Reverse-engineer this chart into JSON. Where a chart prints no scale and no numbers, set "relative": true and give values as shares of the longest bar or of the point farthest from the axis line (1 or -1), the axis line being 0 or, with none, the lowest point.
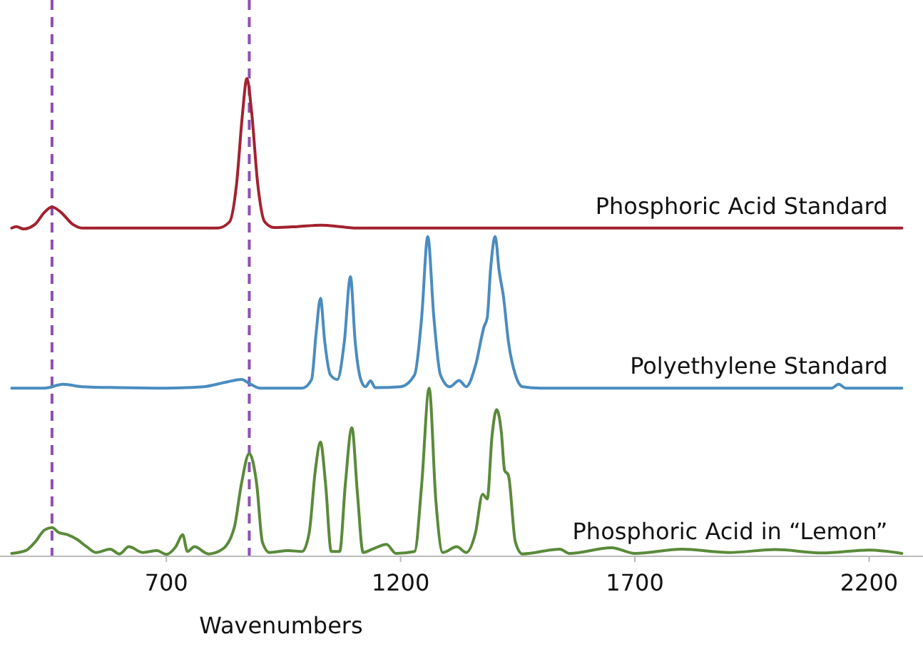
{
  "chart_data": {
    "type": "line",
    "relative": true,
    "xlabel": "Wavenumbers",
    "xlim": [
      345,
      2315
    ],
    "xticks": [
      700,
      1200,
      1700,
      2200
    ],
    "ref_lines": [
      {
        "axis": "x",
        "value": 456,
        "color": "#8e4fb3",
        "line_style": "dashed"
      },
      {
        "axis": "x",
        "value": 877,
        "color": "#8e4fb3",
        "line_style": "dashed"
      }
    ],
    "series": [
      {
        "name": "Phosphoric Acid Standard",
        "color": "#a3222f",
        "x": [
          370,
          380,
          395,
          420,
          440,
          456,
          475,
          500,
          520,
          700,
          810,
          835,
          850,
          862,
          872,
          882,
          895,
          910,
          930,
          980,
          1030,
          1070,
          1100,
          1500,
          2270
        ],
        "values": [
          0.687,
          0.69,
          0.685,
          0.695,
          0.72,
          0.731,
          0.72,
          0.695,
          0.687,
          0.687,
          0.687,
          0.7,
          0.78,
          0.92,
          1.0,
          0.93,
          0.78,
          0.7,
          0.688,
          0.69,
          0.693,
          0.69,
          0.687,
          0.687,
          0.687
        ]
      },
      {
        "name": "Polyethylene Standard",
        "color": "#4a8cc0",
        "x": [
          370,
          440,
          480,
          520,
          600,
          700,
          780,
          830,
          860,
          880,
          900,
          990,
          1010,
          1020,
          1029,
          1038,
          1050,
          1065,
          1080,
          1093,
          1103,
          1115,
          1125,
          1136,
          1146,
          1200,
          1230,
          1245,
          1258,
          1271,
          1285,
          1305,
          1325,
          1340,
          1360,
          1378,
          1385,
          1392,
          1402,
          1410,
          1420,
          1430,
          1445,
          1460,
          1500,
          2120,
          2135,
          2150,
          2270
        ],
        "values": [
          0.352,
          0.352,
          0.36,
          0.355,
          0.353,
          0.352,
          0.355,
          0.365,
          0.37,
          0.36,
          0.352,
          0.352,
          0.37,
          0.47,
          0.54,
          0.45,
          0.38,
          0.37,
          0.45,
          0.585,
          0.45,
          0.37,
          0.355,
          0.367,
          0.353,
          0.355,
          0.38,
          0.5,
          0.669,
          0.5,
          0.38,
          0.355,
          0.368,
          0.355,
          0.4,
          0.48,
          0.5,
          0.6,
          0.669,
          0.6,
          0.54,
          0.45,
          0.38,
          0.355,
          0.352,
          0.352,
          0.36,
          0.352,
          0.352
        ]
      },
      {
        "name": "Phosphoric Acid in “Lemon”",
        "color": "#5a8a3a",
        "x": [
          370,
          400,
          420,
          440,
          456,
          470,
          490,
          510,
          530,
          550,
          580,
          600,
          620,
          650,
          680,
          700,
          720,
          735,
          745,
          760,
          790,
          820,
          845,
          860,
          877,
          893,
          905,
          920,
          960,
          990,
          1005,
          1018,
          1029,
          1040,
          1052,
          1070,
          1082,
          1096,
          1108,
          1120,
          1140,
          1170,
          1190,
          1230,
          1245,
          1261,
          1275,
          1290,
          1320,
          1340,
          1360,
          1375,
          1385,
          1395,
          1405,
          1415,
          1422,
          1430,
          1445,
          1460,
          1540,
          1560,
          1650,
          1700,
          1800,
          1900,
          2000,
          2100,
          2200,
          2270
        ],
        "values": [
          0.006,
          0.012,
          0.03,
          0.055,
          0.06,
          0.05,
          0.045,
          0.035,
          0.02,
          0.008,
          0.015,
          0.005,
          0.02,
          0.008,
          0.012,
          0.004,
          0.02,
          0.045,
          0.01,
          0.02,
          0.005,
          0.015,
          0.06,
          0.15,
          0.215,
          0.15,
          0.03,
          0.008,
          0.012,
          0.01,
          0.05,
          0.18,
          0.239,
          0.15,
          0.01,
          0.01,
          0.15,
          0.269,
          0.13,
          0.008,
          0.015,
          0.025,
          0.006,
          0.01,
          0.15,
          0.352,
          0.12,
          0.008,
          0.02,
          0.008,
          0.05,
          0.13,
          0.12,
          0.25,
          0.307,
          0.26,
          0.18,
          0.17,
          0.03,
          0.005,
          0.015,
          0.006,
          0.018,
          0.006,
          0.015,
          0.008,
          0.014,
          0.007,
          0.013,
          0.006
        ]
      }
    ]
  }
}
